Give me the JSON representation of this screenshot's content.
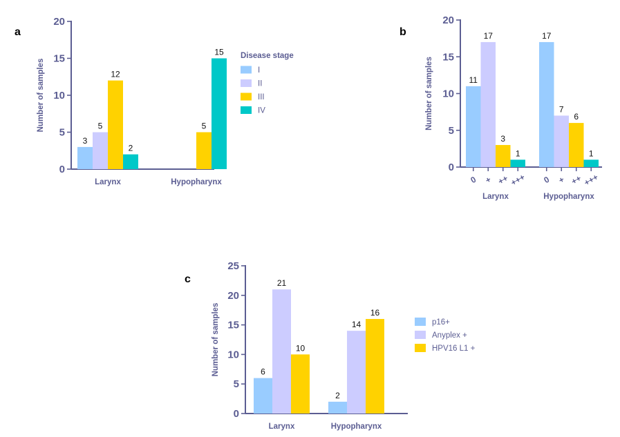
{
  "colors": {
    "axis": "#5b5d92",
    "s1": "#99ccff",
    "s2": "#ccccff",
    "s3": "#ffd200",
    "s4": "#00c8c8"
  },
  "chart_data": [
    {
      "panel": "a",
      "type": "bar",
      "ylabel": "Number of samples",
      "ylim": [
        0,
        20
      ],
      "yticks": [
        0,
        5,
        10,
        15,
        20
      ],
      "categories": [
        "Larynx",
        "Hypopharynx"
      ],
      "legend_title": "Disease stage",
      "legend_position": "right",
      "series": [
        {
          "name": "I",
          "color": "#99ccff",
          "values": [
            3,
            0
          ]
        },
        {
          "name": "II",
          "color": "#ccccff",
          "values": [
            5,
            0
          ]
        },
        {
          "name": "III",
          "color": "#ffd200",
          "values": [
            12,
            5
          ]
        },
        {
          "name": "IV",
          "color": "#00c8c8",
          "values": [
            2,
            15
          ]
        }
      ]
    },
    {
      "panel": "b",
      "type": "bar",
      "ylabel": "Number of samples",
      "ylim": [
        0,
        20
      ],
      "yticks": [
        0,
        5,
        10,
        15,
        20
      ],
      "categories": [
        "Larynx",
        "Hypopharynx"
      ],
      "bar_labels": [
        "0",
        "+",
        "++",
        "+++"
      ],
      "series": [
        {
          "name": "0",
          "color": "#99ccff",
          "values": [
            11,
            17
          ]
        },
        {
          "name": "+",
          "color": "#ccccff",
          "values": [
            17,
            7
          ]
        },
        {
          "name": "++",
          "color": "#ffd200",
          "values": [
            3,
            6
          ]
        },
        {
          "name": "+++",
          "color": "#00c8c8",
          "values": [
            1,
            1
          ]
        }
      ]
    },
    {
      "panel": "c",
      "type": "bar",
      "ylabel": "Number of samples",
      "ylim": [
        0,
        25
      ],
      "yticks": [
        0,
        5,
        10,
        15,
        20,
        25
      ],
      "categories": [
        "Larynx",
        "Hypopharynx"
      ],
      "legend_position": "right",
      "series": [
        {
          "name": "p16+",
          "color": "#99ccff",
          "values": [
            6,
            2
          ]
        },
        {
          "name": "Anyplex +",
          "color": "#ccccff",
          "values": [
            21,
            14
          ]
        },
        {
          "name": "HPV16 L1 +",
          "color": "#ffd200",
          "values": [
            10,
            16
          ]
        }
      ]
    }
  ]
}
